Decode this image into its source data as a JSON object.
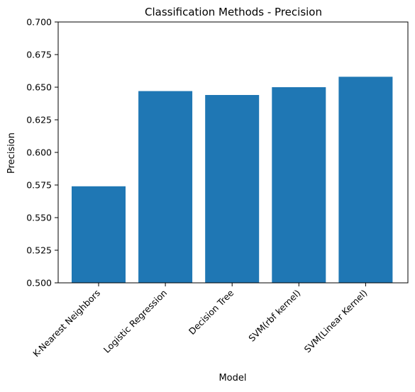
{
  "chart_data": {
    "type": "bar",
    "title": "Classification Methods - Precision",
    "xlabel": "Model",
    "ylabel": "Precision",
    "categories": [
      "K-Nearest Neighbors",
      "Logistic Regression",
      "Decision Tree",
      "SVM(rbf kernel)",
      "SVM(Linear Kernel)"
    ],
    "values": [
      0.574,
      0.647,
      0.644,
      0.65,
      0.658
    ],
    "ylim": [
      0.5,
      0.7
    ],
    "yticks": [
      "0.500",
      "0.525",
      "0.550",
      "0.575",
      "0.600",
      "0.625",
      "0.650",
      "0.675",
      "0.700"
    ],
    "bar_color": "#1f77b4",
    "grid": false,
    "legend": "none"
  }
}
